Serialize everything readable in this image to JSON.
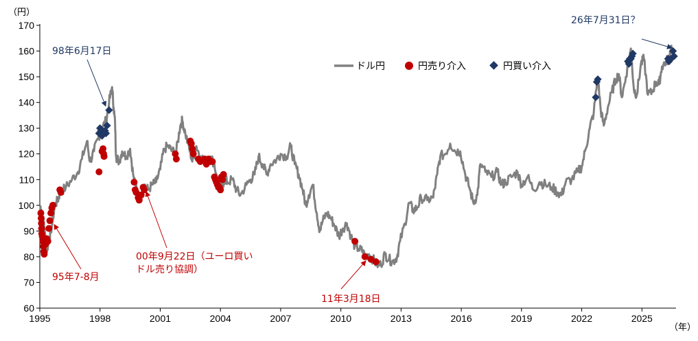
{
  "chart_data": {
    "type": "line",
    "y_unit": "（円）",
    "x_unit": "（年）",
    "xlim": [
      1995,
      2026.7
    ],
    "ylim": [
      60,
      170
    ],
    "y_ticks": [
      "60",
      "70",
      "80",
      "90",
      "100",
      "110",
      "120",
      "130",
      "140",
      "150",
      "160",
      "170"
    ],
    "x_ticks": [
      "1995",
      "1998",
      "2001",
      "2004",
      "2007",
      "2010",
      "2013",
      "2016",
      "2019",
      "2022",
      "2025"
    ],
    "grid": false,
    "legend_position": "top-center",
    "legend": {
      "line": "ドル円",
      "sell": "円売り介入",
      "buy": "円買い介入"
    },
    "colors": {
      "line": "#808080",
      "sell": "#c00000",
      "buy": "#1f3864"
    },
    "series": [
      {
        "name": "ドル円",
        "points": [
          [
            1995.0,
            100
          ],
          [
            1995.1,
            98
          ],
          [
            1995.25,
            90
          ],
          [
            1995.33,
            82
          ],
          [
            1995.45,
            86
          ],
          [
            1995.6,
            92
          ],
          [
            1995.75,
            100
          ],
          [
            1995.9,
            102
          ],
          [
            1996.0,
            105
          ],
          [
            1996.3,
            107
          ],
          [
            1996.6,
            110
          ],
          [
            1996.9,
            113
          ],
          [
            1997.1,
            118
          ],
          [
            1997.35,
            125
          ],
          [
            1997.5,
            117
          ],
          [
            1997.7,
            121
          ],
          [
            1997.9,
            126
          ],
          [
            1998.1,
            130
          ],
          [
            1998.3,
            133
          ],
          [
            1998.45,
            140
          ],
          [
            1998.6,
            146
          ],
          [
            1998.68,
            138
          ],
          [
            1998.75,
            132
          ],
          [
            1998.8,
            119
          ],
          [
            1998.95,
            117
          ],
          [
            1999.1,
            121
          ],
          [
            1999.3,
            119
          ],
          [
            1999.5,
            122
          ],
          [
            1999.65,
            112
          ],
          [
            1999.85,
            105
          ],
          [
            2000.0,
            103
          ],
          [
            2000.2,
            108
          ],
          [
            2000.4,
            106
          ],
          [
            2000.6,
            108
          ],
          [
            2000.8,
            109
          ],
          [
            2001.0,
            114
          ],
          [
            2001.2,
            122
          ],
          [
            2001.4,
            123
          ],
          [
            2001.6,
            121
          ],
          [
            2001.8,
            121
          ],
          [
            2002.0,
            131
          ],
          [
            2002.1,
            133
          ],
          [
            2002.25,
            128
          ],
          [
            2002.45,
            122
          ],
          [
            2002.6,
            117
          ],
          [
            2002.8,
            123
          ],
          [
            2003.0,
            119
          ],
          [
            2003.3,
            117
          ],
          [
            2003.5,
            119
          ],
          [
            2003.7,
            116
          ],
          [
            2003.85,
            109
          ],
          [
            2004.0,
            106
          ],
          [
            2004.2,
            110
          ],
          [
            2004.35,
            109
          ],
          [
            2004.6,
            110
          ],
          [
            2004.8,
            106
          ],
          [
            2005.0,
            104
          ],
          [
            2005.3,
            108
          ],
          [
            2005.5,
            110
          ],
          [
            2005.7,
            112
          ],
          [
            2005.9,
            119
          ],
          [
            2006.1,
            116
          ],
          [
            2006.3,
            112
          ],
          [
            2006.5,
            116
          ],
          [
            2006.8,
            118
          ],
          [
            2007.0,
            120
          ],
          [
            2007.3,
            119
          ],
          [
            2007.5,
            123
          ],
          [
            2007.7,
            116
          ],
          [
            2007.9,
            112
          ],
          [
            2008.1,
            106
          ],
          [
            2008.25,
            100
          ],
          [
            2008.4,
            104
          ],
          [
            2008.6,
            108
          ],
          [
            2008.8,
            97
          ],
          [
            2008.95,
            90
          ],
          [
            2009.1,
            94
          ],
          [
            2009.3,
            97
          ],
          [
            2009.5,
            95
          ],
          [
            2009.7,
            92
          ],
          [
            2009.9,
            88
          ],
          [
            2010.1,
            91
          ],
          [
            2010.3,
            93
          ],
          [
            2010.5,
            88
          ],
          [
            2010.7,
            84
          ],
          [
            2010.9,
            83
          ],
          [
            2011.1,
            82
          ],
          [
            2011.2,
            80
          ],
          [
            2011.4,
            81
          ],
          [
            2011.6,
            79
          ],
          [
            2011.8,
            77
          ],
          [
            2012.0,
            77
          ],
          [
            2012.2,
            81
          ],
          [
            2012.4,
            79
          ],
          [
            2012.6,
            78
          ],
          [
            2012.8,
            80
          ],
          [
            2012.95,
            86
          ],
          [
            2013.2,
            93
          ],
          [
            2013.4,
            101
          ],
          [
            2013.6,
            98
          ],
          [
            2013.8,
            99
          ],
          [
            2014.0,
            103
          ],
          [
            2014.3,
            102
          ],
          [
            2014.6,
            103
          ],
          [
            2014.8,
            112
          ],
          [
            2014.95,
            119
          ],
          [
            2015.2,
            120
          ],
          [
            2015.45,
            124
          ],
          [
            2015.7,
            121
          ],
          [
            2015.95,
            121
          ],
          [
            2016.2,
            112
          ],
          [
            2016.4,
            107
          ],
          [
            2016.6,
            101
          ],
          [
            2016.8,
            104
          ],
          [
            2016.95,
            116
          ],
          [
            2017.2,
            113
          ],
          [
            2017.5,
            111
          ],
          [
            2017.8,
            113
          ],
          [
            2018.0,
            108
          ],
          [
            2018.2,
            109
          ],
          [
            2018.5,
            111
          ],
          [
            2018.8,
            113
          ],
          [
            2019.0,
            108
          ],
          [
            2019.3,
            111
          ],
          [
            2019.6,
            106
          ],
          [
            2019.9,
            109
          ],
          [
            2020.2,
            108
          ],
          [
            2020.5,
            107
          ],
          [
            2020.8,
            105
          ],
          [
            2021.0,
            104
          ],
          [
            2021.2,
            109
          ],
          [
            2021.5,
            110
          ],
          [
            2021.8,
            113
          ],
          [
            2022.0,
            115
          ],
          [
            2022.2,
            122
          ],
          [
            2022.4,
            130
          ],
          [
            2022.6,
            136
          ],
          [
            2022.8,
            150
          ],
          [
            2022.95,
            137
          ],
          [
            2023.1,
            131
          ],
          [
            2023.3,
            138
          ],
          [
            2023.5,
            144
          ],
          [
            2023.7,
            149
          ],
          [
            2023.85,
            151
          ],
          [
            2024.0,
            142
          ],
          [
            2024.2,
            150
          ],
          [
            2024.45,
            161
          ],
          [
            2024.6,
            145
          ],
          [
            2024.75,
            143
          ],
          [
            2024.95,
            155
          ],
          [
            2025.1,
            157
          ],
          [
            2025.3,
            143
          ],
          [
            2025.5,
            144
          ],
          [
            2025.7,
            148
          ],
          [
            2025.85,
            147
          ],
          [
            2026.0,
            154
          ],
          [
            2026.2,
            156
          ],
          [
            2026.35,
            157
          ],
          [
            2026.45,
            162
          ],
          [
            2026.55,
            158
          ]
        ]
      },
      {
        "name": "円売り介入",
        "points": [
          [
            1995.05,
            97
          ],
          [
            1995.07,
            95
          ],
          [
            1995.08,
            93
          ],
          [
            1995.09,
            91
          ],
          [
            1995.1,
            89
          ],
          [
            1995.12,
            88
          ],
          [
            1995.15,
            86
          ],
          [
            1995.18,
            84
          ],
          [
            1995.2,
            82
          ],
          [
            1995.22,
            81
          ],
          [
            1995.3,
            85
          ],
          [
            1995.35,
            87
          ],
          [
            1995.4,
            86
          ],
          [
            1995.45,
            91
          ],
          [
            1995.5,
            94
          ],
          [
            1995.55,
            97
          ],
          [
            1995.6,
            99
          ],
          [
            1995.65,
            100
          ],
          [
            1996.0,
            106
          ],
          [
            1996.05,
            105
          ],
          [
            1997.95,
            113
          ],
          [
            1998.1,
            121
          ],
          [
            1998.15,
            122
          ],
          [
            1998.18,
            120
          ],
          [
            1998.2,
            119
          ],
          [
            1999.7,
            109
          ],
          [
            1999.75,
            106
          ],
          [
            1999.8,
            105
          ],
          [
            1999.9,
            103
          ],
          [
            1999.95,
            102
          ],
          [
            2000.05,
            104
          ],
          [
            2000.15,
            107
          ],
          [
            2000.2,
            106
          ],
          [
            2001.75,
            120
          ],
          [
            2001.8,
            118
          ],
          [
            2002.5,
            125
          ],
          [
            2002.55,
            124
          ],
          [
            2002.6,
            122
          ],
          [
            2002.65,
            120
          ],
          [
            2002.9,
            118
          ],
          [
            2003.0,
            117
          ],
          [
            2003.2,
            118
          ],
          [
            2003.3,
            116
          ],
          [
            2003.4,
            118
          ],
          [
            2003.5,
            117
          ],
          [
            2003.6,
            117
          ],
          [
            2003.7,
            111
          ],
          [
            2003.75,
            110
          ],
          [
            2003.8,
            109
          ],
          [
            2003.85,
            108
          ],
          [
            2003.9,
            107
          ],
          [
            2003.95,
            107
          ],
          [
            2004.0,
            106
          ],
          [
            2004.05,
            111
          ],
          [
            2004.1,
            110
          ],
          [
            2004.15,
            112
          ],
          [
            2010.7,
            86
          ],
          [
            2011.2,
            80
          ],
          [
            2011.5,
            79
          ],
          [
            2011.75,
            78
          ]
        ]
      },
      {
        "name": "円買い介入",
        "points": [
          [
            1997.95,
            128
          ],
          [
            1998.0,
            130
          ],
          [
            1998.05,
            129
          ],
          [
            1998.1,
            127
          ],
          [
            1998.25,
            129
          ],
          [
            1998.3,
            128
          ],
          [
            1998.35,
            131
          ],
          [
            1998.45,
            137
          ],
          [
            2022.7,
            142
          ],
          [
            2022.75,
            148
          ],
          [
            2022.8,
            149
          ],
          [
            2024.3,
            156
          ],
          [
            2024.35,
            155
          ],
          [
            2024.4,
            157
          ],
          [
            2024.45,
            157
          ],
          [
            2024.5,
            158
          ],
          [
            2024.55,
            159
          ],
          [
            2026.3,
            157
          ],
          [
            2026.35,
            156
          ],
          [
            2026.45,
            157
          ],
          [
            2026.55,
            160
          ],
          [
            2026.6,
            158
          ]
        ]
      }
    ],
    "annotations": {
      "a1998": "98年6月17日",
      "a1995": "95年7-8月",
      "a2000_l1": "00年9月22日（ユーロ買い",
      "a2000_l2": "ドル売り協調）",
      "a2011": "11年3月18日",
      "a2026": "26年7月31日？"
    }
  }
}
